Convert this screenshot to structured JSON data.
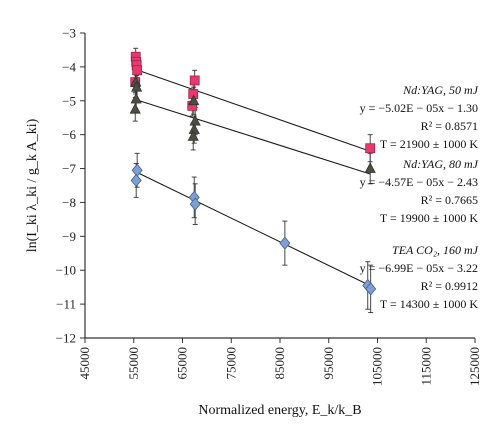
{
  "chart_data": {
    "type": "scatter",
    "xlabel": "Normalized energy, E_k/k_B",
    "ylabel": "ln(I_ki λ_ki / g_k A_ki)",
    "xlim": [
      45000,
      125000
    ],
    "ylim": [
      -12,
      -3
    ],
    "x_ticks": [
      45000,
      55000,
      65000,
      75000,
      85000,
      95000,
      105000,
      115000,
      125000
    ],
    "y_ticks": [
      -3,
      -4,
      -5,
      -6,
      -7,
      -8,
      -9,
      -10,
      -11,
      -12
    ],
    "grid": false,
    "series": [
      {
        "name": "Nd:YAG, 50 mJ",
        "marker": "square",
        "color": "#e63a6e",
        "points": [
          {
            "x": 55400,
            "y": -3.7,
            "err": 0.25
          },
          {
            "x": 55500,
            "y": -3.85,
            "err": 0.25
          },
          {
            "x": 55600,
            "y": -3.95,
            "err": 0.25
          },
          {
            "x": 55700,
            "y": -4.1,
            "err": 0.25
          },
          {
            "x": 55300,
            "y": -4.45,
            "err": 0.3
          },
          {
            "x": 67500,
            "y": -4.4,
            "err": 0.3
          },
          {
            "x": 67200,
            "y": -4.8,
            "err": 0.3
          },
          {
            "x": 67000,
            "y": -5.15,
            "err": 0.3
          },
          {
            "x": 103500,
            "y": -6.4,
            "err": 0.4
          }
        ],
        "fit": {
          "x": [
            55500,
            103500
          ],
          "y": [
            -4.08,
            -6.49
          ]
        },
        "annotation": {
          "lines": [
            "Nd:YAG, 50 mJ",
            "y = −5.02E − 05x − 1.30",
            "R² = 0.8571",
            "T = 21900 ± 1000 K"
          ]
        }
      },
      {
        "name": "Nd:YAG, 80 mJ",
        "marker": "triangle",
        "color": "#4d4d44",
        "points": [
          {
            "x": 55400,
            "y": -4.45,
            "err": 0.35
          },
          {
            "x": 55600,
            "y": -4.6,
            "err": 0.35
          },
          {
            "x": 55500,
            "y": -4.95,
            "err": 0.35
          },
          {
            "x": 55300,
            "y": -5.25,
            "err": 0.35
          },
          {
            "x": 67300,
            "y": -5.0,
            "err": 0.4
          },
          {
            "x": 67600,
            "y": -5.6,
            "err": 0.4
          },
          {
            "x": 67400,
            "y": -5.85,
            "err": 0.4
          },
          {
            "x": 67200,
            "y": -6.05,
            "err": 0.4
          },
          {
            "x": 103500,
            "y": -7.0,
            "err": 0.45
          }
        ],
        "fit": {
          "x": [
            55500,
            103500
          ],
          "y": [
            -4.97,
            -7.16
          ]
        },
        "annotation": {
          "lines": [
            "Nd:YAG, 80 mJ",
            "y = −4.57E − 05x − 2.43",
            "R² = 0.7665",
            "T = 19900 ± 1000 K"
          ]
        }
      },
      {
        "name": "TEA CO₂, 160 mJ",
        "marker": "diamond",
        "color": "#7f9fd1",
        "points": [
          {
            "x": 55700,
            "y": -7.05,
            "err": 0.5
          },
          {
            "x": 55500,
            "y": -7.35,
            "err": 0.5
          },
          {
            "x": 67400,
            "y": -7.85,
            "err": 0.6
          },
          {
            "x": 67600,
            "y": -8.05,
            "err": 0.6
          },
          {
            "x": 86000,
            "y": -9.2,
            "err": 0.65
          },
          {
            "x": 103000,
            "y": -10.45,
            "err": 0.7
          },
          {
            "x": 103600,
            "y": -10.55,
            "err": 0.7
          }
        ],
        "fit": {
          "x": [
            55500,
            104000
          ],
          "y": [
            -7.1,
            -10.49
          ]
        },
        "annotation": {
          "lines": [
            "TEA CO₂, 160 mJ",
            "y = −6.99E − 05x − 3.22",
            "R² = 0.9912",
            "T = 14300 ± 1000 K"
          ]
        }
      }
    ]
  }
}
